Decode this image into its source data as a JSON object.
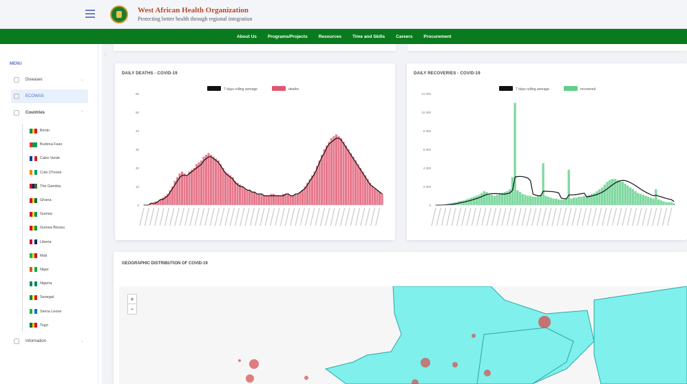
{
  "header": {
    "org_name": "West African Health Organization",
    "org_tagline": "Protecting better health through regional integration"
  },
  "nav": {
    "links": [
      "About Us",
      "Programs/Projects",
      "Resources",
      "Time and Skills",
      "Careers",
      "Procurement"
    ]
  },
  "sidebar": {
    "menu_title": "MENU",
    "items": [
      {
        "label": "Diseases"
      },
      {
        "label": "ECOWAS"
      },
      {
        "label": "Countries"
      },
      {
        "label": "Information"
      }
    ],
    "countries": [
      {
        "name": "Benin",
        "flag": [
          "#0a8f3c",
          "#f2d21c",
          "#e8112d"
        ]
      },
      {
        "name": "Burkina Faso",
        "flag": [
          "#ef2b2d",
          "#009e49",
          "#009e49"
        ]
      },
      {
        "name": "Cabo Verde",
        "flag": [
          "#003893",
          "#ffffff",
          "#cf2027"
        ]
      },
      {
        "name": "Cote D'Ivoire",
        "flag": [
          "#f77f00",
          "#ffffff",
          "#009e60"
        ]
      },
      {
        "name": "The Gambia",
        "flag": [
          "#ce1126",
          "#0c1c8c",
          "#3a7728"
        ]
      },
      {
        "name": "Ghana",
        "flag": [
          "#ce1126",
          "#fcd116",
          "#006b3f"
        ]
      },
      {
        "name": "Guinea",
        "flag": [
          "#ce1126",
          "#fcd116",
          "#009460"
        ]
      },
      {
        "name": "Guinea Bissau",
        "flag": [
          "#ce1126",
          "#fcd116",
          "#009e49"
        ]
      },
      {
        "name": "Liberia",
        "flag": [
          "#bf0a30",
          "#ffffff",
          "#002868"
        ]
      },
      {
        "name": "Mali",
        "flag": [
          "#14b53a",
          "#fcd116",
          "#ce1126"
        ]
      },
      {
        "name": "Niger",
        "flag": [
          "#e05206",
          "#ffffff",
          "#0db02b"
        ]
      },
      {
        "name": "Nigeria",
        "flag": [
          "#008751",
          "#ffffff",
          "#008751"
        ]
      },
      {
        "name": "Senegal",
        "flag": [
          "#00853f",
          "#fdef42",
          "#e31b23"
        ]
      },
      {
        "name": "Sierra Leone",
        "flag": [
          "#1eb53a",
          "#ffffff",
          "#0072c6"
        ]
      },
      {
        "name": "Togo",
        "flag": [
          "#006a4e",
          "#ffce00",
          "#d21034"
        ]
      }
    ]
  },
  "deaths_card": {
    "title": "DAILY DEATHS - COVID-19"
  },
  "recoveries_card": {
    "title": "DAILY RECOVERIES - COVID-19"
  },
  "geo_card": {
    "title": "GEOGRAPHIC DISTRIBUTION OF COVID-19"
  },
  "map": {
    "zoom_in": "+",
    "zoom_out": "−"
  },
  "colors": {
    "brand_green": "#0a7a1e",
    "deaths": "#e0566f",
    "recoveries": "#5fcf8a",
    "map_land": "#7ff0ec",
    "avg_line": "#111111"
  },
  "chart_data": [
    {
      "type": "bar",
      "title": "DAILY DEATHS - COVID-19",
      "legend": [
        "7 days rolling average",
        "deaths"
      ],
      "legend_placement": "top",
      "yticks": [
        "0",
        "10",
        "20",
        "30",
        "40",
        "50",
        "60"
      ],
      "ylim": [
        0,
        60
      ],
      "grid": false,
      "values": [
        0,
        0,
        0,
        1,
        1,
        2,
        2,
        3,
        4,
        5,
        6,
        8,
        10,
        13,
        15,
        17,
        18,
        17,
        16,
        18,
        19,
        20,
        22,
        23,
        24,
        26,
        27,
        28,
        27,
        26,
        25,
        24,
        22,
        20,
        18,
        17,
        16,
        15,
        13,
        12,
        11,
        10,
        9,
        8,
        8,
        7,
        7,
        6,
        6,
        6,
        5,
        5,
        5,
        6,
        6,
        5,
        5,
        5,
        6,
        6,
        6,
        5,
        5,
        6,
        6,
        7,
        8,
        10,
        12,
        14,
        16,
        18,
        21,
        24,
        27,
        30,
        32,
        34,
        36,
        37,
        38,
        37,
        36,
        34,
        32,
        30,
        28,
        26,
        24,
        22,
        20,
        18,
        16,
        14,
        12,
        10,
        9,
        8,
        7,
        6
      ],
      "average": [
        0,
        0,
        0,
        1,
        1,
        1,
        2,
        3,
        3,
        4,
        5,
        7,
        9,
        11,
        13,
        15,
        16,
        16,
        16,
        17,
        18,
        19,
        20,
        21,
        22,
        24,
        25,
        26,
        26,
        25,
        24,
        23,
        21,
        19,
        17,
        16,
        15,
        14,
        12,
        11,
        10,
        10,
        9,
        8,
        8,
        7,
        7,
        6,
        6,
        6,
        5,
        5,
        5,
        5,
        5,
        5,
        5,
        5,
        5,
        6,
        6,
        5,
        5,
        6,
        6,
        7,
        8,
        9,
        11,
        13,
        15,
        17,
        20,
        23,
        26,
        28,
        31,
        33,
        34,
        35,
        36,
        36,
        35,
        33,
        31,
        29,
        27,
        25,
        23,
        21,
        19,
        17,
        15,
        13,
        11,
        10,
        9,
        8,
        7,
        6
      ]
    },
    {
      "type": "bar",
      "title": "DAILY RECOVERIES - COVID-19",
      "legend": [
        "7 days rolling average",
        "recovered"
      ],
      "legend_placement": "top",
      "yticks": [
        "0",
        "2 000",
        "4 000",
        "6 000",
        "8 000",
        "10 000",
        "12 000"
      ],
      "ylim": [
        0,
        12000
      ],
      "grid": false,
      "values": [
        0,
        0,
        0,
        50,
        100,
        150,
        200,
        250,
        300,
        400,
        450,
        500,
        600,
        700,
        800,
        900,
        1000,
        1100,
        1300,
        1500,
        1400,
        1200,
        1100,
        1000,
        1100,
        1200,
        1300,
        1400,
        1500,
        1700,
        3000,
        11000,
        1600,
        1400,
        1200,
        1100,
        1000,
        1000,
        900,
        900,
        1000,
        1100,
        4500,
        1000,
        900,
        800,
        700,
        700,
        600,
        600,
        600,
        700,
        3800,
        700,
        800,
        800,
        900,
        900,
        1000,
        1000,
        1100,
        1200,
        1300,
        1500,
        1700,
        1900,
        2200,
        2500,
        2700,
        2800,
        2800,
        2700,
        2600,
        2500,
        2300,
        2100,
        1900,
        1700,
        1500,
        1300,
        1200,
        1100,
        1000,
        900,
        800,
        700,
        1700,
        600,
        500,
        400,
        300,
        300,
        300,
        200
      ]
    }
  ]
}
